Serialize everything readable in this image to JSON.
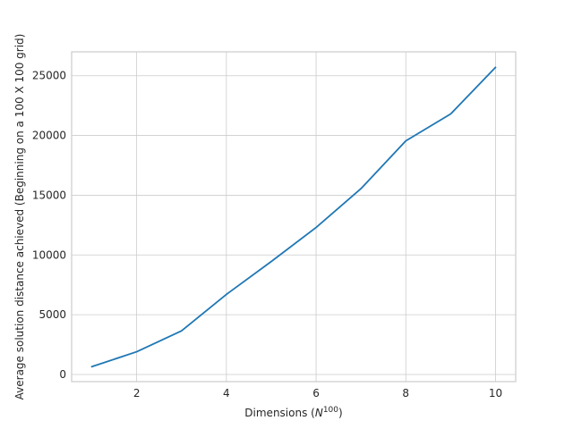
{
  "chart_data": {
    "type": "line",
    "title": "",
    "xlabel": {
      "text": "Dimensions (",
      "math_base": "N",
      "math_exp": "100",
      "suffix": ")"
    },
    "ylabel": "Average solution distance achieved (Beginning on a 100 X 100 grid)",
    "xlim": [
      0.55,
      10.45
    ],
    "ylim": [
      -600,
      27000
    ],
    "xticks": [
      2,
      4,
      6,
      8,
      10
    ],
    "xtick_labels": [
      "2",
      "4",
      "6",
      "8",
      "10"
    ],
    "yticks": [
      0,
      5000,
      10000,
      15000,
      20000,
      25000
    ],
    "ytick_labels": [
      "0",
      "5000",
      "10000",
      "15000",
      "20000",
      "25000"
    ],
    "grid": true,
    "legend": false,
    "series": [
      {
        "color": "#1f77b4",
        "x": [
          1,
          2,
          3,
          4,
          5,
          6,
          7,
          8,
          9,
          10
        ],
        "y": [
          650,
          1900,
          3650,
          6700,
          9450,
          12300,
          15550,
          19550,
          21800,
          25700
        ]
      }
    ]
  }
}
